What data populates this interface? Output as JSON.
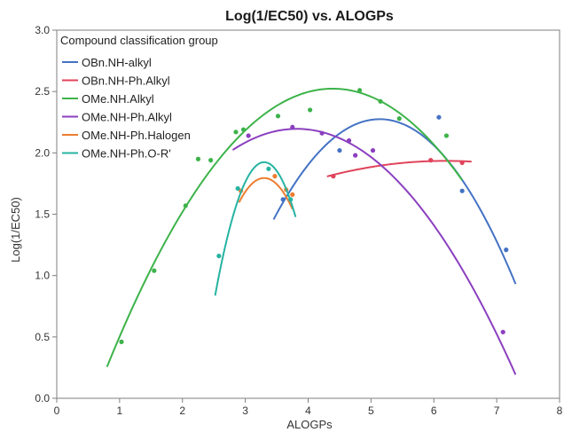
{
  "chart_data": {
    "type": "scatter",
    "title": "Log(1/EC50) vs. ALOGPs",
    "xlabel": "ALOGPs",
    "ylabel": "Log(1/EC50)",
    "xlim": [
      0,
      8
    ],
    "ylim": [
      0,
      3
    ],
    "xticks": [
      "0",
      "1",
      "2",
      "3",
      "4",
      "5",
      "6",
      "7",
      "8"
    ],
    "yticks": [
      "0.0",
      "0.5",
      "1.0",
      "1.5",
      "2.0",
      "2.5",
      "3.0"
    ],
    "grid": false,
    "legend": {
      "title": "Compound classification group",
      "placement": "top-left"
    },
    "series": [
      {
        "name": "OBn.NH-alkyl",
        "color": "#4472c4",
        "points": [
          [
            3.6,
            1.62
          ],
          [
            4.5,
            2.02
          ],
          [
            6.08,
            2.29
          ],
          [
            6.45,
            1.69
          ],
          [
            7.15,
            1.21
          ]
        ],
        "fit": {
          "coef": [
            -0.2871,
            2.9499,
            -5.3028
          ],
          "x_range": [
            3.45,
            7.3
          ]
        }
      },
      {
        "name": "OBn.NH-Ph.Alkyl",
        "color": "#e0435a",
        "points": [
          [
            4.4,
            1.81
          ],
          [
            5.95,
            1.94
          ],
          [
            6.45,
            1.92
          ]
        ],
        "fit": {
          "coef": [
            -0.0357,
            0.4416,
            0.5691
          ],
          "x_range": [
            4.3,
            6.6
          ]
        }
      },
      {
        "name": "OMe.NH.Alkyl",
        "color": "#3db34a",
        "points": [
          [
            1.03,
            0.46
          ],
          [
            1.55,
            1.04
          ],
          [
            2.05,
            1.57
          ],
          [
            2.25,
            1.95
          ],
          [
            2.45,
            1.94
          ],
          [
            2.85,
            2.17
          ],
          [
            2.97,
            2.19
          ],
          [
            3.52,
            2.3
          ],
          [
            4.03,
            2.35
          ],
          [
            4.82,
            2.51
          ],
          [
            5.15,
            2.42
          ],
          [
            5.45,
            2.28
          ],
          [
            6.2,
            2.14
          ]
        ],
        "fit": {
          "coef": [
            -0.1758,
            1.5437,
            -0.8655
          ],
          "x_range": [
            0.8,
            6.45
          ]
        }
      },
      {
        "name": "OMe.NH-Ph.Alkyl",
        "color": "#8b3fbf",
        "points": [
          [
            3.05,
            2.14
          ],
          [
            3.75,
            2.21
          ],
          [
            4.22,
            2.16
          ],
          [
            4.65,
            2.1
          ],
          [
            4.75,
            1.98
          ],
          [
            5.03,
            2.02
          ],
          [
            7.1,
            0.54
          ]
        ],
        "fit": {
          "coef": [
            -0.1655,
            1.2647,
            -0.2202
          ],
          "x_range": [
            2.8,
            7.3
          ]
        }
      },
      {
        "name": "OMe.NH-Ph.Halogen",
        "color": "#ed7d31",
        "points": [
          [
            2.93,
            1.69
          ],
          [
            3.47,
            1.81
          ],
          [
            3.65,
            1.7
          ],
          [
            3.75,
            1.66
          ]
        ],
        "fit": {
          "coef": [
            -1.2469,
            8.2288,
            -11.7814
          ],
          "x_range": [
            2.9,
            3.75
          ]
        }
      },
      {
        "name": "OMe.NH-Ph.O-R'",
        "color": "#26b3a1",
        "points": [
          [
            2.58,
            1.16
          ],
          [
            2.88,
            1.71
          ],
          [
            3.37,
            1.87
          ],
          [
            3.72,
            1.62
          ]
        ],
        "fit": {
          "coef": [
            -1.7857,
            11.7857,
            -17.5225
          ],
          "x_range": [
            2.52,
            3.8
          ]
        }
      }
    ]
  }
}
